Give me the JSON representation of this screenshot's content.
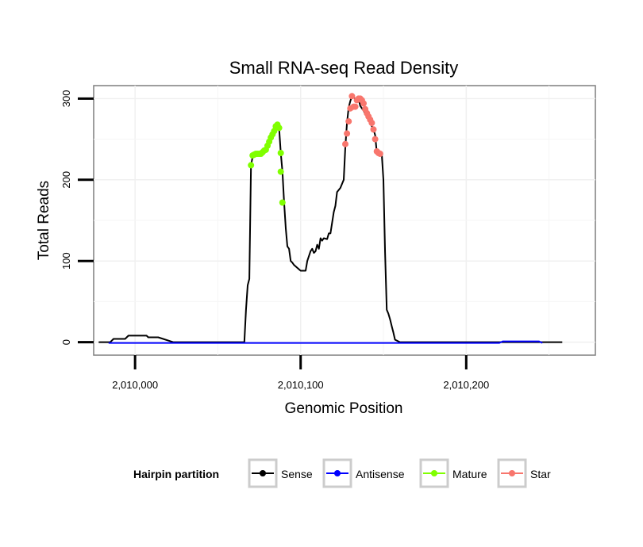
{
  "chart_data": {
    "type": "line",
    "title": "Small RNA-seq Read Density",
    "xlabel": "Genomic Position",
    "ylabel": "Total Reads",
    "xlim": [
      2009975,
      2010278
    ],
    "ylim": [
      -16,
      316
    ],
    "xticks": [
      {
        "value": 2010000,
        "label": "2,010,000"
      },
      {
        "value": 2010100,
        "label": "2,010,100"
      },
      {
        "value": 2010200,
        "label": "2,010,200"
      }
    ],
    "yticks": [
      {
        "value": 0,
        "label": "0"
      },
      {
        "value": 100,
        "label": "100"
      },
      {
        "value": 200,
        "label": "200"
      },
      {
        "value": 300,
        "label": "300"
      }
    ],
    "grid": true,
    "legend": {
      "title": "Hairpin partition",
      "position": "bottom",
      "entries": [
        {
          "label": "Sense",
          "color": "#000000"
        },
        {
          "label": "Antisense",
          "color": "#0000ff"
        },
        {
          "label": "Mature",
          "color": "#80ff00"
        },
        {
          "label": "Star",
          "color": "#f8766d"
        }
      ]
    },
    "series": [
      {
        "name": "Sense",
        "color": "#000000",
        "x": [
          2009978,
          2009985,
          2009987,
          2009994,
          2009996,
          2010007,
          2010008,
          2010014,
          2010023,
          2010050,
          2010066,
          2010067,
          2010068,
          2010069,
          2010070,
          2010071,
          2010072,
          2010076,
          2010080,
          2010083,
          2010086,
          2010087,
          2010088,
          2010089,
          2010090,
          2010091,
          2010092,
          2010093,
          2010094,
          2010095,
          2010096,
          2010100,
          2010103,
          2010104,
          2010106,
          2010107,
          2010108,
          2010109,
          2010110,
          2010111,
          2010112,
          2010113,
          2010114,
          2010116,
          2010117,
          2010118,
          2010120,
          2010121,
          2010122,
          2010124,
          2010126,
          2010127,
          2010128,
          2010129,
          2010130,
          2010131,
          2010133,
          2010135,
          2010136,
          2010138,
          2010140,
          2010142,
          2010144,
          2010145,
          2010146,
          2010147,
          2010148,
          2010149,
          2010150,
          2010151,
          2010152,
          2010153,
          2010154,
          2010155,
          2010156,
          2010157,
          2010160,
          2010200,
          2010220,
          2010240,
          2010245,
          2010258
        ],
        "y": [
          0,
          0,
          4,
          4,
          8,
          8,
          6,
          6,
          0,
          0,
          0,
          40,
          70,
          78,
          218,
          228,
          230,
          233,
          240,
          256,
          268,
          264,
          233,
          210,
          172,
          140,
          118,
          115,
          100,
          98,
          95,
          88,
          88,
          100,
          112,
          115,
          110,
          112,
          120,
          115,
          128,
          125,
          128,
          127,
          134,
          134,
          160,
          168,
          185,
          190,
          200,
          240,
          270,
          289,
          297,
          303,
          300,
          300,
          291,
          285,
          278,
          270,
          262,
          255,
          233,
          233,
          233,
          232,
          200,
          110,
          40,
          35,
          28,
          20,
          12,
          3,
          0,
          0,
          0,
          0,
          0,
          0
        ]
      },
      {
        "name": "Antisense",
        "color": "#0000ff",
        "x": [
          2009984,
          2010023,
          2010066,
          2010220,
          2010222,
          2010244,
          2010246
        ],
        "y": [
          -1,
          -1,
          -1,
          -1,
          1,
          1,
          -1
        ]
      }
    ],
    "points": [
      {
        "name": "Mature",
        "color": "#80ff00",
        "x": [
          2010070,
          2010071,
          2010072,
          2010073,
          2010074,
          2010075,
          2010076,
          2010077,
          2010078,
          2010079,
          2010080,
          2010081,
          2010082,
          2010083,
          2010084,
          2010085,
          2010086,
          2010087,
          2010088,
          2010088,
          2010089
        ],
        "y": [
          218,
          230,
          231,
          232,
          232,
          232,
          232,
          234,
          236,
          237,
          242,
          247,
          252,
          256,
          260,
          266,
          268,
          264,
          233,
          210,
          172
        ]
      },
      {
        "name": "Star",
        "color": "#f8766d",
        "x": [
          2010127,
          2010128,
          2010129,
          2010130,
          2010131,
          2010132,
          2010133,
          2010134,
          2010135,
          2010136,
          2010137,
          2010138,
          2010139,
          2010140,
          2010141,
          2010142,
          2010143,
          2010144,
          2010145,
          2010146,
          2010147,
          2010148
        ],
        "y": [
          244,
          257,
          272,
          288,
          303,
          290,
          290,
          298,
          300,
          300,
          298,
          294,
          287,
          282,
          278,
          274,
          270,
          262,
          250,
          235,
          233,
          232
        ]
      }
    ]
  }
}
